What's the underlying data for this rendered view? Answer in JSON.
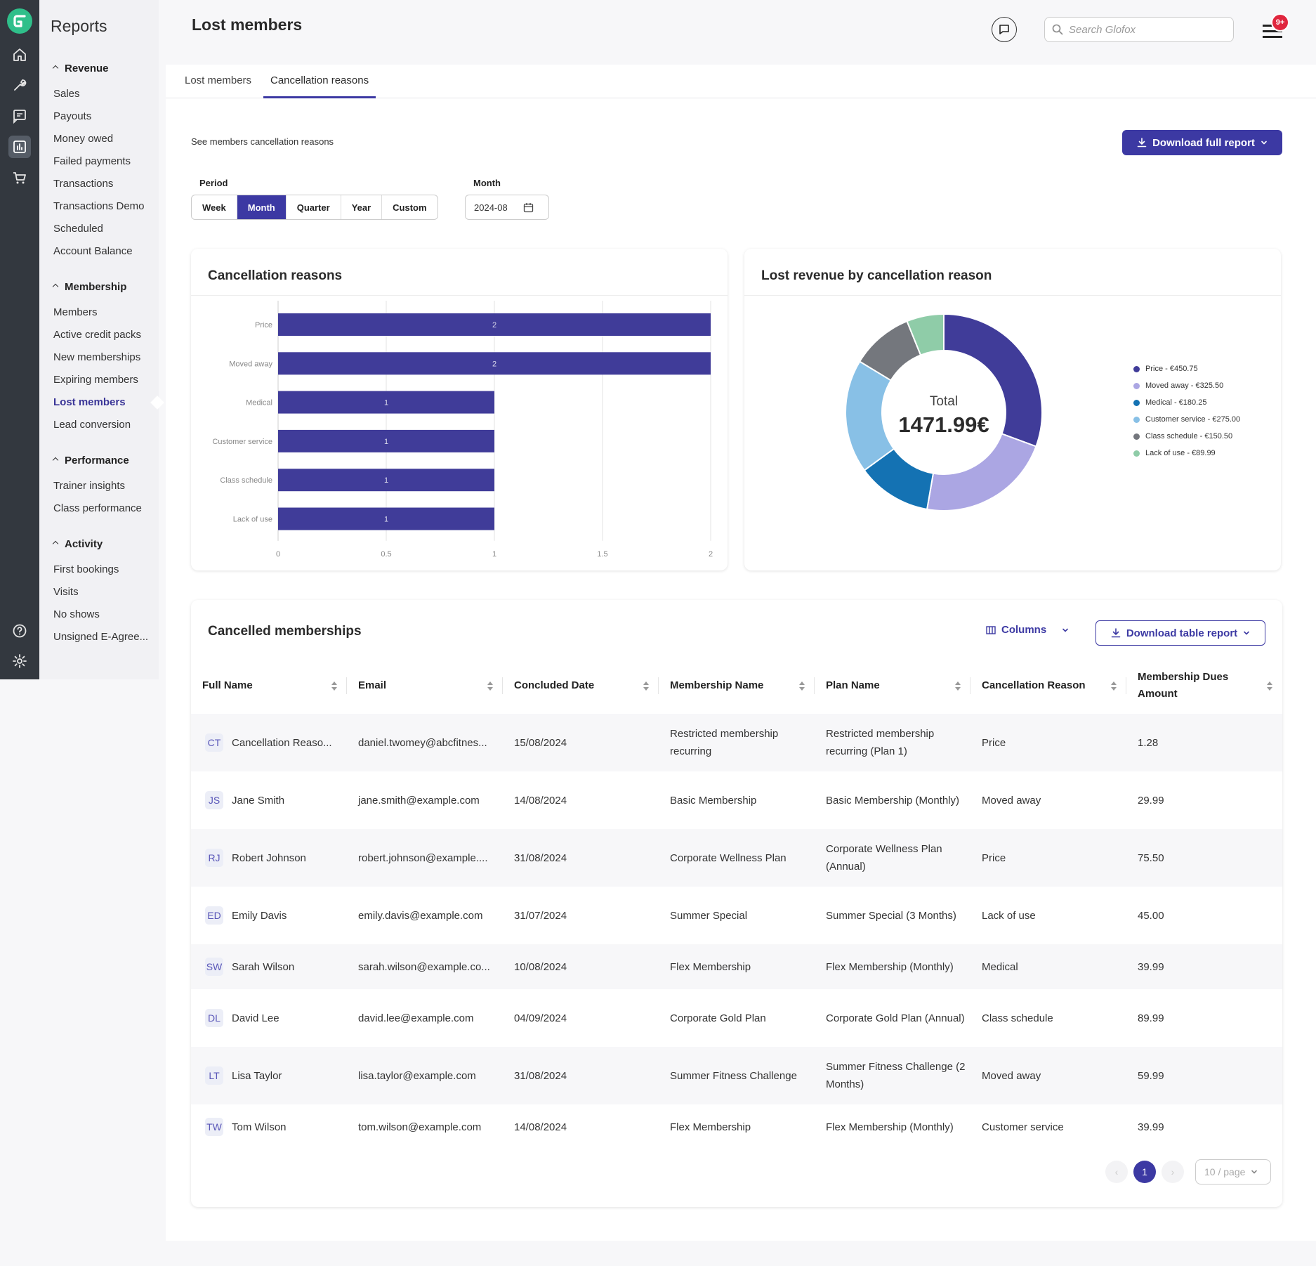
{
  "sidebar": {
    "title": "Reports",
    "groups": [
      {
        "label": "Revenue",
        "items": [
          "Sales",
          "Payouts",
          "Money owed",
          "Failed payments",
          "Transactions",
          "Transactions Demo",
          "Scheduled",
          "Account Balance"
        ]
      },
      {
        "label": "Membership",
        "items": [
          "Members",
          "Active credit packs",
          "New memberships",
          "Expiring members",
          "Lost members",
          "Lead conversion"
        ]
      },
      {
        "label": "Performance",
        "items": [
          "Trainer insights",
          "Class performance"
        ]
      },
      {
        "label": "Activity",
        "items": [
          "First bookings",
          "Visits",
          "No shows",
          "Unsigned E-Agree..."
        ]
      }
    ],
    "active_item": "Lost members"
  },
  "header": {
    "title": "Lost members",
    "search_placeholder": "Search Glofox",
    "notification_badge": "9+"
  },
  "tabs": [
    "Lost members",
    "Cancellation reasons"
  ],
  "active_tab": "Cancellation reasons",
  "filters": {
    "subtitle": "See members cancellation reasons",
    "download_label": "Download full report",
    "period_label": "Period",
    "period_options": [
      "Week",
      "Month",
      "Quarter",
      "Year",
      "Custom"
    ],
    "period_selected": "Month",
    "month_label": "Month",
    "month_value": "2024-08"
  },
  "colors": {
    "accent": "#3c39a3",
    "bar": "#403c99",
    "donut": [
      "#403c99",
      "#aba6e3",
      "#1472b3",
      "#88c0e6",
      "#74777d",
      "#8fcca8"
    ]
  },
  "chart_data": [
    {
      "type": "bar",
      "orientation": "horizontal",
      "title": "Cancellation reasons",
      "categories": [
        "Price",
        "Moved away",
        "Medical",
        "Customer service",
        "Class schedule",
        "Lack of use"
      ],
      "values": [
        2,
        2,
        1,
        1,
        1,
        1
      ],
      "data_labels": [
        "2",
        "2",
        "1",
        "1",
        "1",
        "1"
      ],
      "xlim": [
        0,
        2
      ],
      "xticks": [
        0,
        0.5,
        1,
        1.5,
        2
      ],
      "xtick_labels": [
        "0",
        "0.5",
        "1",
        "1.5",
        "2"
      ],
      "grid": true
    },
    {
      "type": "pie",
      "donut": true,
      "title": "Lost revenue by cancellation reason",
      "center_label": "Total",
      "center_value": "1471.99€",
      "slices": [
        {
          "label": "Price - €450.75",
          "value": 450.75
        },
        {
          "label": "Moved away - €325.50",
          "value": 325.5
        },
        {
          "label": "Medical - €180.25",
          "value": 180.25
        },
        {
          "label": "Customer service - €275.00",
          "value": 275.0
        },
        {
          "label": "Class schedule - €150.50",
          "value": 150.5
        },
        {
          "label": "Lack of use - €89.99",
          "value": 89.99
        }
      ],
      "legend_position": "right"
    }
  ],
  "table": {
    "title": "Cancelled memberships",
    "columns_label": "Columns",
    "download_label": "Download table report",
    "headers": [
      "Full Name",
      "Email",
      "Concluded Date",
      "Membership Name",
      "Plan Name",
      "Cancellation Reason",
      "Membership Dues Amount"
    ],
    "rows": [
      {
        "initials": "CT",
        "name": "Cancellation Reaso...",
        "email": "daniel.twomey@abcfitnes...",
        "date": "15/08/2024",
        "membership": "Restricted membership recurring",
        "plan": "Restricted membership recurring (Plan 1)",
        "reason": "Price",
        "amount": "1.28"
      },
      {
        "initials": "JS",
        "name": "Jane Smith",
        "email": "jane.smith@example.com",
        "date": "14/08/2024",
        "membership": "Basic Membership",
        "plan": "Basic Membership (Monthly)",
        "reason": "Moved away",
        "amount": "29.99"
      },
      {
        "initials": "RJ",
        "name": "Robert Johnson",
        "email": "robert.johnson@example....",
        "date": "31/08/2024",
        "membership": "Corporate Wellness Plan",
        "plan": "Corporate Wellness Plan (Annual)",
        "reason": "Price",
        "amount": "75.50"
      },
      {
        "initials": "ED",
        "name": "Emily Davis",
        "email": "emily.davis@example.com",
        "date": "31/07/2024",
        "membership": "Summer Special",
        "plan": "Summer Special (3 Months)",
        "reason": "Lack of use",
        "amount": "45.00"
      },
      {
        "initials": "SW",
        "name": "Sarah Wilson",
        "email": "sarah.wilson@example.co...",
        "date": "10/08/2024",
        "membership": "Flex Membership",
        "plan": "Flex Membership (Monthly)",
        "reason": "Medical",
        "amount": "39.99"
      },
      {
        "initials": "DL",
        "name": "David Lee",
        "email": "david.lee@example.com",
        "date": "04/09/2024",
        "membership": "Corporate Gold Plan",
        "plan": "Corporate Gold Plan (Annual)",
        "reason": "Class schedule",
        "amount": "89.99"
      },
      {
        "initials": "LT",
        "name": "Lisa Taylor",
        "email": "lisa.taylor@example.com",
        "date": "31/08/2024",
        "membership": "Summer Fitness Challenge",
        "plan": "Summer Fitness Challenge (2 Months)",
        "reason": "Moved away",
        "amount": "59.99"
      },
      {
        "initials": "TW",
        "name": "Tom Wilson",
        "email": "tom.wilson@example.com",
        "date": "14/08/2024",
        "membership": "Flex Membership",
        "plan": "Flex Membership (Monthly)",
        "reason": "Customer service",
        "amount": "39.99"
      }
    ],
    "pagination": {
      "current_page": "1",
      "page_size": "10 / page"
    }
  },
  "icons": {
    "rail": [
      "home-icon",
      "tools-icon",
      "messages-icon",
      "reports-icon",
      "cart-icon",
      "help-icon",
      "settings-icon"
    ]
  }
}
